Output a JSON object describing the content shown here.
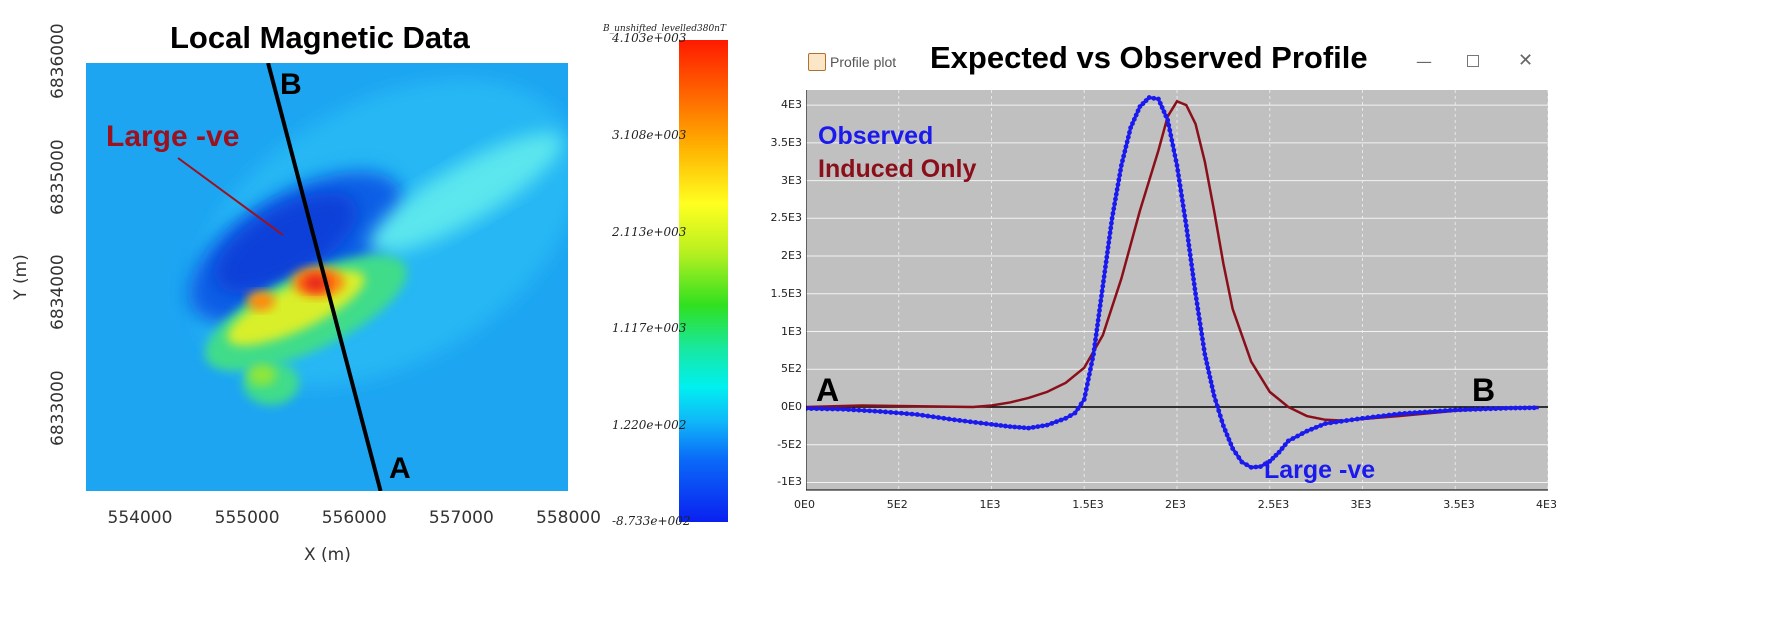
{
  "chart_data": [
    {
      "type": "heatmap",
      "title": "Local Magnetic Data",
      "xlabel": "X (m)",
      "ylabel": "Y (m)",
      "xlim": [
        553500,
        558000
      ],
      "ylim": [
        6832300,
        6836000
      ],
      "x_ticks": [
        "554000",
        "555000",
        "556000",
        "557000",
        "558000"
      ],
      "y_ticks": [
        "6833000",
        "6834000",
        "6835000",
        "6836000"
      ],
      "colorbar": {
        "label": "B_unshifted_levelled380nT",
        "ticks": [
          "4.103e+003",
          "3.108e+003",
          "2.113e+003",
          "1.117e+003",
          "1.220e+002",
          "-8.733e+002"
        ],
        "range": [
          -873.3,
          4103
        ]
      },
      "profile_line": {
        "start": {
          "label": "A",
          "x": 556250,
          "y": 6832300
        },
        "end": {
          "label": "B",
          "x": 555200,
          "y": 6836000
        }
      },
      "annotation": "Large -ve",
      "annotation_color": "#9b111e"
    },
    {
      "type": "line",
      "title": "Expected vs Observed Profile",
      "window_title": "Profile plot",
      "xlim": [
        0,
        4000
      ],
      "ylim": [
        -1100,
        4200
      ],
      "x_ticks": [
        "0E0",
        "5E2",
        "1E3",
        "1.5E3",
        "2E3",
        "2.5E3",
        "3E3",
        "3.5E3",
        "4E3"
      ],
      "y_ticks": [
        "4E3",
        "3.5E3",
        "3E3",
        "2.5E3",
        "2E3",
        "1.5E3",
        "1E3",
        "5E2",
        "0E0",
        "-5E2",
        "-1E3"
      ],
      "start_label": "A",
      "end_label": "B",
      "annotation": "Large -ve",
      "series": [
        {
          "name": "Observed",
          "color": "#1a1aee",
          "x": [
            0,
            200,
            400,
            600,
            800,
            1000,
            1100,
            1200,
            1300,
            1400,
            1450,
            1500,
            1550,
            1600,
            1650,
            1700,
            1750,
            1800,
            1850,
            1900,
            1950,
            2000,
            2050,
            2100,
            2150,
            2200,
            2250,
            2300,
            2350,
            2400,
            2450,
            2500,
            2550,
            2600,
            2700,
            2800,
            3000,
            3200,
            3500,
            3800,
            3950
          ],
          "y": [
            -20,
            -30,
            -60,
            -100,
            -170,
            -230,
            -260,
            -280,
            -240,
            -150,
            -80,
            100,
            700,
            1600,
            2500,
            3200,
            3700,
            3980,
            4100,
            4080,
            3800,
            3200,
            2400,
            1500,
            700,
            150,
            -250,
            -550,
            -730,
            -800,
            -790,
            -720,
            -600,
            -450,
            -320,
            -220,
            -150,
            -90,
            -40,
            -15,
            -10
          ]
        },
        {
          "name": "Induced Only",
          "color": "#8b0f1a",
          "x": [
            0,
            300,
            600,
            900,
            1000,
            1100,
            1200,
            1300,
            1400,
            1500,
            1600,
            1700,
            1800,
            1900,
            1950,
            2000,
            2050,
            2100,
            2150,
            2200,
            2250,
            2300,
            2400,
            2500,
            2600,
            2700,
            2800,
            2900,
            3000,
            3200,
            3500,
            3800,
            3950
          ],
          "y": [
            0,
            20,
            10,
            0,
            20,
            60,
            120,
            200,
            320,
            520,
            950,
            1700,
            2600,
            3400,
            3850,
            4050,
            4000,
            3750,
            3250,
            2600,
            1900,
            1300,
            600,
            200,
            0,
            -120,
            -170,
            -180,
            -160,
            -120,
            -50,
            -10,
            0
          ]
        }
      ]
    }
  ]
}
